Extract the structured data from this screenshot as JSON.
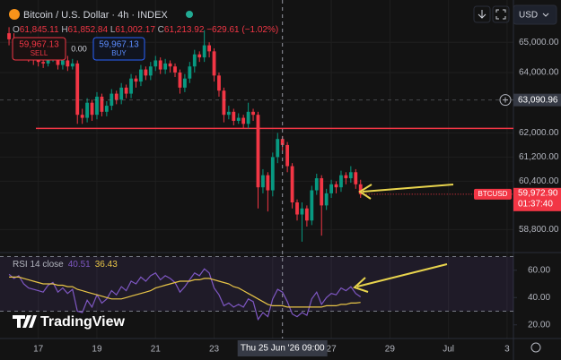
{
  "header": {
    "symbol": "Bitcoin / U.S. Dollar · 4h · INDEX",
    "ohlc": [
      {
        "key": "O",
        "value": "61,845.11"
      },
      {
        "key": "H",
        "value": "61,852.84"
      },
      {
        "key": "L",
        "value": "61,002.17"
      },
      {
        "key": "C",
        "value": "61,213.92"
      }
    ],
    "change": "−629.61 (−1.02%)"
  },
  "trade": {
    "sell_price": "59,967.13",
    "sell": "SELL",
    "spread": "0.00",
    "buy_price": "59,967.13",
    "buy": "BUY"
  },
  "currency": "USD",
  "branding": "TradingView",
  "chart_data": {
    "type": "candlestick",
    "open": [
      65300,
      65100,
      64900,
      65000,
      64700,
      64500,
      64400,
      64350,
      64300,
      64500,
      64600,
      64250,
      64400,
      64200,
      64300,
      62600,
      62500,
      63000,
      62600,
      63200,
      62700,
      62900,
      63300,
      63100,
      63500,
      63300,
      63800,
      63700,
      64100,
      63900,
      64200,
      64400,
      64100,
      64300,
      64200,
      64000,
      63500,
      63800,
      64200,
      64600,
      64500,
      64900,
      64700,
      63900,
      63400,
      62600,
      62700,
      62400,
      62500,
      62300,
      62700,
      62600,
      60200,
      60600,
      60100,
      61200,
      61800,
      61600,
      60900,
      59700,
      59300,
      59500,
      59100,
      60100,
      60500,
      59600,
      60000,
      60300,
      60200,
      60600,
      60500,
      60700,
      60300
    ],
    "high": [
      65500,
      65300,
      65150,
      65100,
      64800,
      64650,
      64550,
      64500,
      64650,
      64750,
      64750,
      64550,
      64550,
      64450,
      64400,
      62800,
      63150,
      63100,
      63350,
      63300,
      63050,
      63450,
      63400,
      63650,
      63600,
      63950,
      63900,
      64250,
      64200,
      64350,
      64550,
      64500,
      64450,
      64400,
      64300,
      64100,
      63950,
      64350,
      64750,
      64700,
      65400,
      65000,
      64800,
      64000,
      63500,
      62900,
      62800,
      62650,
      62600,
      63000,
      62800,
      62700,
      60800,
      60700,
      61350,
      62000,
      61900,
      61700,
      61000,
      59800,
      59700,
      59600,
      60250,
      60650,
      60600,
      60150,
      60450,
      60400,
      60750,
      60700,
      60900,
      60800,
      60450
    ],
    "low": [
      64900,
      64750,
      64750,
      64550,
      64350,
      64250,
      64200,
      64150,
      64200,
      64350,
      64100,
      64100,
      64050,
      64100,
      62300,
      62300,
      62350,
      62400,
      62450,
      62550,
      62550,
      62750,
      62950,
      62950,
      63150,
      63150,
      63500,
      63550,
      63750,
      63750,
      64050,
      63950,
      63950,
      64000,
      63850,
      63300,
      63350,
      63650,
      64000,
      64350,
      64350,
      64500,
      63700,
      63200,
      62350,
      62450,
      62250,
      62300,
      62150,
      62150,
      62400,
      59500,
      60000,
      59400,
      59900,
      61000,
      61400,
      60700,
      59500,
      59100,
      58400,
      58900,
      58950,
      59950,
      58600,
      59450,
      59850,
      60000,
      60050,
      60300,
      60350,
      60150,
      59850
    ],
    "close": [
      65100,
      64900,
      65000,
      64700,
      64500,
      64400,
      64350,
      64300,
      64500,
      64600,
      64250,
      64400,
      64200,
      64300,
      62600,
      62500,
      63000,
      62600,
      63200,
      62700,
      62900,
      63300,
      63100,
      63500,
      63300,
      63800,
      63700,
      64100,
      63900,
      64200,
      64400,
      64100,
      64300,
      64200,
      64000,
      63500,
      63800,
      64200,
      64600,
      64500,
      64900,
      64700,
      63900,
      63400,
      62600,
      62700,
      62400,
      62500,
      62300,
      62700,
      62600,
      60200,
      60600,
      60100,
      61200,
      61800,
      61600,
      60900,
      59700,
      59300,
      59500,
      59100,
      60100,
      60500,
      59600,
      60000,
      60300,
      60200,
      60600,
      60500,
      60700,
      60300,
      59972.9
    ],
    "up_color": "#089981",
    "down_color": "#f23645",
    "xlim": [
      -1.85,
      103.3
    ],
    "xticks": [
      {
        "value": 6,
        "label": "17"
      },
      {
        "value": 18,
        "label": "19"
      },
      {
        "value": 30,
        "label": "21"
      },
      {
        "value": 42,
        "label": "23"
      },
      {
        "value": 54,
        "label": "25"
      },
      {
        "value": 66,
        "label": "27"
      },
      {
        "value": 78,
        "label": "29"
      },
      {
        "value": 90,
        "label": "Jul"
      },
      {
        "value": 102,
        "label": "3"
      }
    ],
    "ylim": [
      58100,
      66400
    ],
    "yticks": [
      {
        "value": 65000,
        "label": "65,000.00"
      },
      {
        "value": 64000,
        "label": "64,000.00"
      },
      {
        "value": 62000,
        "label": "62,000.00"
      },
      {
        "value": 61200,
        "label": "61,200.00"
      },
      {
        "value": 60400,
        "label": "60,400.00"
      },
      {
        "value": 58800,
        "label": "58,800.00"
      }
    ],
    "grid": true,
    "hlines": [
      {
        "value": 62150,
        "color": "#f23645"
      }
    ],
    "last_price": {
      "value": 59972.9,
      "label": "59,972.90",
      "symbol": "BTCUSD",
      "countdown": "01:37:40",
      "color": "#f23645"
    },
    "crosshair": {
      "index": 56,
      "time_label": "Thu 25 Jun '26   09:00",
      "price": {
        "value": 63090.96,
        "label": "63,090.96"
      }
    },
    "rsi": {
      "title": "RSI 14 close",
      "color": "#7e57c2",
      "ma_color": "#e8c547",
      "values": [
        57,
        54,
        56,
        50,
        47,
        46,
        45,
        44,
        49,
        51,
        44,
        47,
        43,
        46,
        30,
        29,
        38,
        33,
        42,
        36,
        39,
        45,
        42,
        48,
        45,
        52,
        50,
        55,
        52,
        56,
        58,
        53,
        56,
        54,
        51,
        44,
        48,
        53,
        58,
        56,
        61,
        58,
        47,
        42,
        34,
        36,
        33,
        35,
        33,
        39,
        37,
        24,
        29,
        26,
        39,
        46,
        44,
        37,
        28,
        26,
        29,
        27,
        39,
        44,
        35,
        40,
        43,
        42,
        47,
        45,
        48,
        43,
        40.51
      ],
      "ma_values": [
        55,
        55,
        55,
        54,
        53,
        52,
        51,
        50,
        50,
        50,
        49,
        49,
        48,
        48,
        46,
        45,
        44,
        43,
        42,
        41,
        40,
        39,
        39,
        39,
        40,
        41,
        42,
        43,
        44,
        45,
        47,
        48,
        49,
        50,
        51,
        52,
        52,
        52,
        53,
        53,
        54,
        54,
        53,
        52,
        51,
        50,
        48,
        47,
        45,
        43,
        41,
        39,
        37,
        35,
        34,
        34,
        34,
        33,
        33,
        33,
        33,
        33,
        33,
        33,
        33,
        34,
        34,
        34,
        35,
        35,
        36,
        36,
        36.43
      ],
      "ylim": [
        10,
        71
      ],
      "yticks": [
        {
          "value": 20,
          "label": "20.00"
        },
        {
          "value": 40,
          "label": "40.00"
        },
        {
          "value": 60,
          "label": "60.00"
        }
      ],
      "bands": [
        30,
        70
      ]
    }
  }
}
